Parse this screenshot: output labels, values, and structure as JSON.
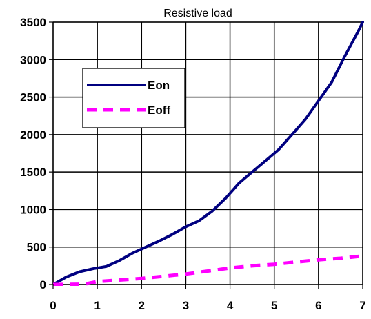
{
  "chart_data": {
    "type": "line",
    "title": "Resistive load",
    "xlabel": "",
    "ylabel": "",
    "xlim": [
      0,
      7
    ],
    "ylim": [
      0,
      3500
    ],
    "x_ticks": [
      "0",
      "1",
      "2",
      "3",
      "4",
      "5",
      "6",
      "7"
    ],
    "y_ticks": [
      "0",
      "500",
      "1000",
      "1500",
      "2000",
      "2500",
      "3000",
      "3500"
    ],
    "grid": true,
    "legend_position": "top-left",
    "series": [
      {
        "name": "Eon",
        "color": "#000080",
        "style": "solid",
        "x": [
          0,
          0.3,
          0.6,
          0.9,
          1.2,
          1.5,
          1.8,
          2.1,
          2.4,
          2.7,
          3.0,
          3.3,
          3.6,
          3.9,
          4.2,
          4.5,
          4.8,
          5.1,
          5.4,
          5.7,
          6.0,
          6.3,
          6.6,
          6.9,
          7.0
        ],
        "y": [
          0,
          100,
          170,
          210,
          240,
          320,
          420,
          500,
          580,
          670,
          770,
          850,
          980,
          1150,
          1350,
          1500,
          1650,
          1800,
          2000,
          2200,
          2450,
          2700,
          3050,
          3380,
          3500
        ]
      },
      {
        "name": "Eoff",
        "color": "#FF00FF",
        "style": "dashed",
        "x": [
          0,
          0.7,
          1.0,
          1.5,
          2.0,
          2.5,
          3.0,
          3.5,
          4.0,
          4.5,
          5.0,
          5.5,
          6.0,
          6.5,
          7.0
        ],
        "y": [
          0,
          5,
          40,
          60,
          80,
          110,
          140,
          180,
          220,
          250,
          270,
          300,
          330,
          350,
          380
        ]
      }
    ]
  }
}
